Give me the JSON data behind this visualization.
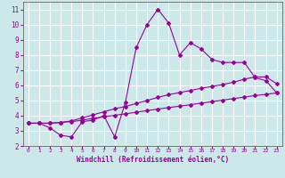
{
  "xlabel": "Windchill (Refroidissement éolien,°C)",
  "bg_color": "#cce8e8",
  "grid_color": "#ffffff",
  "line_color": "#990099",
  "xlim": [
    -0.5,
    23.5
  ],
  "ylim": [
    2,
    11.5
  ],
  "xticks": [
    0,
    1,
    2,
    3,
    4,
    5,
    6,
    7,
    8,
    9,
    10,
    11,
    12,
    13,
    14,
    15,
    16,
    17,
    18,
    19,
    20,
    21,
    22,
    23
  ],
  "yticks": [
    2,
    3,
    4,
    5,
    6,
    7,
    8,
    9,
    10,
    11
  ],
  "main_x": [
    0,
    1,
    2,
    3,
    4,
    5,
    6,
    7,
    8,
    9,
    10,
    11,
    12,
    13,
    14,
    15,
    16,
    17,
    18,
    19,
    20,
    21,
    22,
    23
  ],
  "main_y": [
    3.5,
    3.5,
    3.2,
    2.7,
    2.6,
    3.6,
    3.7,
    4.0,
    2.6,
    4.9,
    8.5,
    10.0,
    11.0,
    10.1,
    8.0,
    8.8,
    8.4,
    7.7,
    7.5,
    7.5,
    7.5,
    6.5,
    6.3,
    5.5
  ],
  "line2_x": [
    0,
    1,
    2,
    3,
    4,
    5,
    6,
    7,
    8,
    9,
    10,
    11,
    12,
    13,
    14,
    15,
    16,
    17,
    18,
    19,
    20,
    21,
    22,
    23
  ],
  "line2_y": [
    3.5,
    3.5,
    3.5,
    3.55,
    3.65,
    3.85,
    4.05,
    4.25,
    4.45,
    4.6,
    4.8,
    5.0,
    5.2,
    5.38,
    5.52,
    5.65,
    5.8,
    5.92,
    6.05,
    6.2,
    6.4,
    6.55,
    6.55,
    6.1
  ],
  "line3_x": [
    0,
    1,
    2,
    3,
    4,
    5,
    6,
    7,
    8,
    9,
    10,
    11,
    12,
    13,
    14,
    15,
    16,
    17,
    18,
    19,
    20,
    21,
    22,
    23
  ],
  "line3_y": [
    3.5,
    3.5,
    3.5,
    3.55,
    3.6,
    3.7,
    3.82,
    3.92,
    4.02,
    4.12,
    4.22,
    4.33,
    4.43,
    4.53,
    4.62,
    4.72,
    4.82,
    4.92,
    5.02,
    5.12,
    5.22,
    5.32,
    5.4,
    5.5
  ]
}
